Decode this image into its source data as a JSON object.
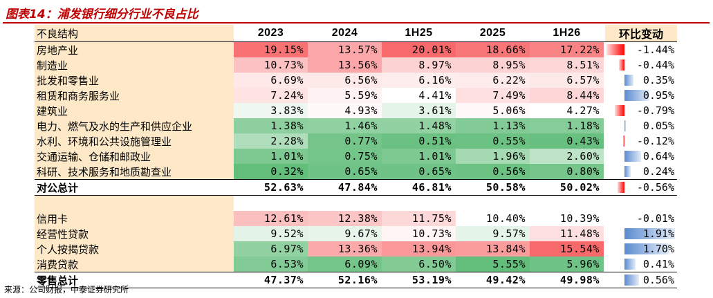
{
  "title": "图表14：浦发银行细分行业不良占比",
  "source": "来源：公司财报，中泰证券研究所",
  "header": {
    "label": "不良结构",
    "columns": [
      "2023",
      "2024",
      "1H25",
      "2025",
      "1H26"
    ],
    "change": "环比变动"
  },
  "corporate_rows": [
    {
      "label": "房地产业",
      "values": [
        "19.15%",
        "13.57%",
        "20.01%",
        "18.66%",
        "17.22%"
      ],
      "change": "-1.44%"
    },
    {
      "label": "制造业",
      "values": [
        "10.73%",
        "13.56%",
        "8.97%",
        "8.95%",
        "8.51%"
      ],
      "change": "-0.44%"
    },
    {
      "label": "批发和零售业",
      "values": [
        "6.69%",
        "6.56%",
        "6.16%",
        "6.22%",
        "6.57%"
      ],
      "change": "0.35%"
    },
    {
      "label": "租赁和商务服务业",
      "values": [
        "7.24%",
        "5.59%",
        "4.41%",
        "7.49%",
        "8.44%"
      ],
      "change": "0.95%"
    },
    {
      "label": "建筑业",
      "values": [
        "3.83%",
        "4.93%",
        "3.61%",
        "5.06%",
        "4.27%"
      ],
      "change": "-0.79%"
    },
    {
      "label": "电力、燃气及水的生产和供应企业",
      "values": [
        "1.38%",
        "1.46%",
        "1.48%",
        "1.13%",
        "1.18%"
      ],
      "change": "0.05%"
    },
    {
      "label": "水利、环境和公共设施管理业",
      "values": [
        "2.28%",
        "0.77%",
        "0.51%",
        "0.55%",
        "0.43%"
      ],
      "change": "-0.12%"
    },
    {
      "label": "交通运输、仓储和邮政业",
      "values": [
        "1.01%",
        "0.75%",
        "1.01%",
        "1.96%",
        "2.60%"
      ],
      "change": "0.64%"
    },
    {
      "label": "科研、技术服务和地质勘查业",
      "values": [
        "0.32%",
        "0.65%",
        "0.65%",
        "0.56%",
        "0.80%"
      ],
      "change": "0.24%"
    }
  ],
  "corporate_total": {
    "label": "对公总计",
    "values": [
      "52.63%",
      "47.84%",
      "46.81%",
      "50.58%",
      "50.02%"
    ],
    "change": "-0.56%"
  },
  "retail_rows": [
    {
      "label": "信用卡",
      "values": [
        "12.61%",
        "12.38%",
        "11.75%",
        "10.40%",
        "10.39%"
      ],
      "change": "-0.01%"
    },
    {
      "label": "经营性贷款",
      "values": [
        "9.52%",
        "9.67%",
        "10.73%",
        "9.57%",
        "11.48%"
      ],
      "change": "1.91%"
    },
    {
      "label": "个人按揭贷款",
      "values": [
        "6.97%",
        "13.36%",
        "13.94%",
        "13.84%",
        "15.54%"
      ],
      "change": "1.70%"
    },
    {
      "label": "消费贷款",
      "values": [
        "6.53%",
        "6.09%",
        "6.50%",
        "5.55%",
        "5.96%"
      ],
      "change": "0.41%"
    }
  ],
  "retail_total": {
    "label": "零售总计",
    "values": [
      "47.37%",
      "52.16%",
      "53.19%",
      "49.42%",
      "49.98%"
    ],
    "change": "0.56%"
  },
  "colors": {
    "title_red": "#c00000",
    "label_bg": "#fde9c8",
    "heat_high": "#f8696b",
    "heat_mid": "#ffffff",
    "heat_low": "#63be7b",
    "bar_negative": "#ff0000",
    "bar_positive": "#5b8bd0"
  }
}
